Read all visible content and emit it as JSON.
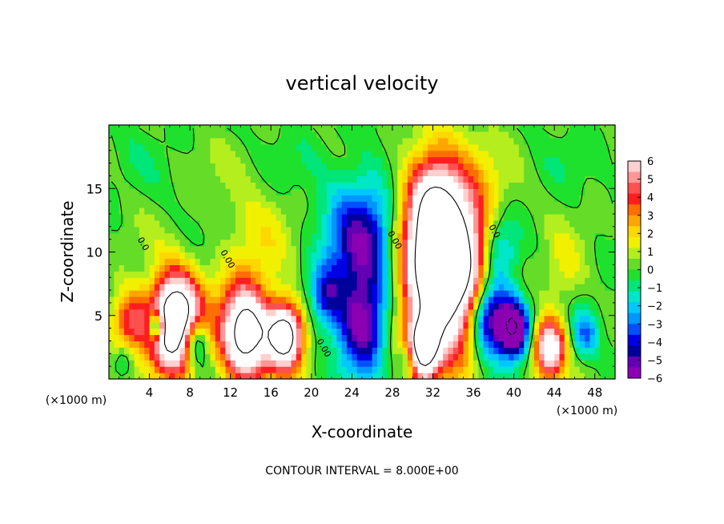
{
  "chart_data": {
    "type": "heatmap",
    "title": "vertical velocity",
    "xlabel": "X-coordinate",
    "ylabel": "Z-coordinate",
    "x_unit_left": "(×1000 m)",
    "x_unit_right": "(×1000 m)",
    "footer": "CONTOUR INTERVAL = 8.000E+00",
    "xlim": [
      0,
      50
    ],
    "ylim": [
      0,
      20
    ],
    "x_ticks": [
      4,
      8,
      12,
      16,
      20,
      24,
      28,
      32,
      36,
      40,
      44,
      48
    ],
    "y_ticks": [
      5,
      10,
      15
    ],
    "colorbar": {
      "min": -6,
      "max": 6,
      "ticks": [
        6,
        5,
        4,
        3,
        2,
        1,
        0,
        -1,
        -2,
        -3,
        -4,
        -5,
        -6
      ],
      "colors": [
        "#ffd0d0",
        "#ff9696",
        "#ff5050",
        "#ff1e1e",
        "#ff6e00",
        "#ffa500",
        "#ffd700",
        "#f0f000",
        "#b4ee1e",
        "#64dc28",
        "#1ee12d",
        "#00e678",
        "#00e6c8",
        "#00c8ff",
        "#0096ff",
        "#0050ff",
        "#0000e6",
        "#00009b",
        "#6400b4",
        "#8c00b4"
      ]
    },
    "contour_labels": [
      {
        "text": "0.0",
        "x": 2.8,
        "y": 11.0
      },
      {
        "text": "0.00",
        "x": 11.0,
        "y": 10.0
      },
      {
        "text": "0.00",
        "x": 20.5,
        "y": 3.0
      },
      {
        "text": "0.00",
        "x": 27.5,
        "y": 11.5
      },
      {
        "text": "0.0",
        "x": 37.5,
        "y": 12.0
      }
    ],
    "series": [
      {
        "kind": "updraft",
        "x": 6.5,
        "y": 4.5,
        "w": 5.0,
        "peak": 12.0
      },
      {
        "kind": "downdraft",
        "x": 4.7,
        "y": 4.2,
        "w": 1.5,
        "peak": -7.0
      },
      {
        "kind": "updraft",
        "x": 13.5,
        "y": 3.5,
        "w": 5.0,
        "peak": 9.5
      },
      {
        "kind": "updraft",
        "x": 17.5,
        "y": 3.5,
        "w": 3.5,
        "peak": 9.5
      },
      {
        "kind": "updraft",
        "x": 2.0,
        "y": 4.5,
        "w": 3.5,
        "peak": 4.5
      },
      {
        "kind": "downdraft",
        "x": 8.5,
        "y": 3.0,
        "w": 2.5,
        "peak": -5.0
      },
      {
        "kind": "downdraft",
        "x": 25.5,
        "y": 10.0,
        "w": 8.0,
        "peak": -5.5
      },
      {
        "kind": "downdraft",
        "x": 25.0,
        "y": 4.0,
        "w": 4.5,
        "peak": -4.5
      },
      {
        "kind": "downdraft",
        "x": 21.5,
        "y": 6.5,
        "w": 3.0,
        "peak": -3.0
      },
      {
        "kind": "updraft",
        "x": 33.0,
        "y": 9.0,
        "w": 9.0,
        "peak": 13.0
      },
      {
        "kind": "updraft",
        "x": 31.0,
        "y": 2.5,
        "w": 3.0,
        "peak": 8.0
      },
      {
        "kind": "updraft",
        "x": 32.0,
        "y": 15.0,
        "w": 5.0,
        "peak": 3.0
      },
      {
        "kind": "downdraft",
        "x": 37.5,
        "y": 5.0,
        "w": 4.0,
        "peak": -8.0
      },
      {
        "kind": "downdraft",
        "x": 40.0,
        "y": 4.0,
        "w": 3.0,
        "peak": -8.0
      },
      {
        "kind": "downdraft",
        "x": 38.5,
        "y": 10.0,
        "w": 4.0,
        "peak": -3.5
      },
      {
        "kind": "updraft",
        "x": 43.5,
        "y": 2.5,
        "w": 3.0,
        "peak": 8.0
      },
      {
        "kind": "downdraft",
        "x": 47.0,
        "y": 3.5,
        "w": 2.5,
        "peak": -3.0
      },
      {
        "kind": "updraft",
        "x": 14.0,
        "y": 10.5,
        "w": 7.0,
        "peak": 1.5
      },
      {
        "kind": "downdraft",
        "x": 1.5,
        "y": 1.5,
        "w": 2.0,
        "peak": -2.0
      },
      {
        "kind": "downdraft",
        "x": 29.5,
        "y": 1.5,
        "w": 2.0,
        "peak": -3.0
      },
      {
        "kind": "updraft",
        "x": 45.0,
        "y": 8.0,
        "w": 4.0,
        "peak": 1.5
      }
    ]
  }
}
